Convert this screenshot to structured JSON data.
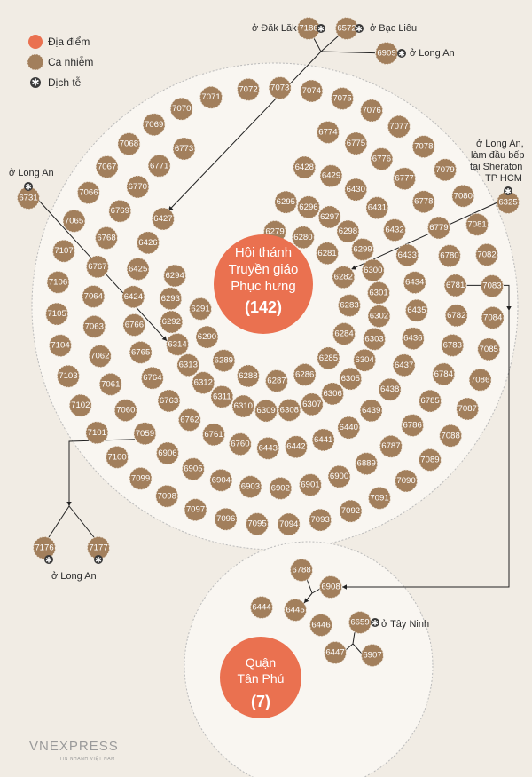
{
  "colors": {
    "place": "#ea7150",
    "case": "#a27f5c",
    "ring": "#f2ece3",
    "star": "#3a3a3a",
    "bg": "#f1ece4",
    "line": "#222222"
  },
  "legend": {
    "place": "Địa điểm",
    "case": "Ca nhiễm",
    "epi": "Dịch tễ"
  },
  "cluster1": {
    "line1": "Hội thánh",
    "line2": "Truyền giáo",
    "line3": "Phục hưng",
    "count": "(142)"
  },
  "cluster2": {
    "line1": "Quận",
    "line2": "Tân Phú",
    "count": "(7)"
  },
  "origin_labels": {
    "daklak": "ở Đăk Lăk",
    "baclieu": "ở Bạc Liêu",
    "longan_top": "ở Long An",
    "longan_left": "ở Long An",
    "longan_bottom": "ở Long An",
    "sheraton_1": "ở Long An,",
    "sheraton_2": "làm đầu bếp",
    "sheraton_3": "tại Sheraton",
    "sheraton_4": "TP HCM",
    "tayninh": "ở Tây Ninh"
  },
  "logo": {
    "text": "VNEXPRESS",
    "tagline": "TIN NHANH VIỆT NAM"
  },
  "cases": {
    "outer_ring": [
      "7072",
      "7073",
      "7074",
      "7075",
      "7076",
      "7077",
      "7078",
      "7079",
      "7080",
      "7081",
      "7082",
      "7083",
      "7084",
      "7085",
      "7086",
      "7087",
      "7088",
      "7089",
      "7090",
      "7091",
      "7092",
      "7093",
      "7094",
      "7095",
      "7096",
      "7097",
      "7098",
      "7099",
      "7100",
      "7101",
      "7102",
      "7103",
      "7104",
      "7105",
      "7106",
      "7107",
      "7065",
      "7066",
      "7067",
      "7068",
      "7069",
      "7070",
      "7071"
    ],
    "ring2": [
      "6774",
      "6775",
      "6776",
      "6777",
      "6778",
      "6779",
      "6780",
      "6781",
      "6782",
      "6783",
      "6784",
      "6785",
      "6786",
      "6787",
      "6889",
      "6900",
      "6901",
      "6902",
      "6903",
      "6904",
      "6905",
      "6906",
      "7059",
      "7060",
      "7061",
      "7062",
      "7063",
      "7064",
      "6767",
      "6768",
      "6769",
      "6770",
      "6771",
      "6773"
    ],
    "ring3": [
      "6428",
      "6429",
      "6430",
      "6431",
      "6432",
      "6433",
      "6434",
      "6435",
      "6436",
      "6437",
      "6438",
      "6439",
      "6440",
      "6441",
      "6442",
      "6443",
      "6760",
      "6761",
      "6762",
      "6763",
      "6764",
      "6765",
      "6766",
      "6424",
      "6425",
      "6426",
      "6427"
    ],
    "ring4": [
      "6295",
      "6296",
      "6297",
      "6298",
      "6299",
      "6300",
      "6301",
      "6302",
      "6303",
      "6304",
      "6305",
      "6306",
      "6307",
      "6308",
      "6309",
      "6310",
      "6311",
      "6312",
      "6313",
      "6314",
      "6292",
      "6293",
      "6294"
    ],
    "ring5": [
      "6279",
      "6280",
      "6281",
      "6282",
      "6283",
      "6284",
      "6285",
      "6286",
      "6287",
      "6288",
      "6289",
      "6290",
      "6291"
    ],
    "external": [
      "7186",
      "6572",
      "6909",
      "6731",
      "6325",
      "7176",
      "7177"
    ],
    "tanphu": [
      "6788",
      "6908",
      "6444",
      "6445",
      "6446",
      "6659",
      "6447",
      "6907"
    ]
  }
}
